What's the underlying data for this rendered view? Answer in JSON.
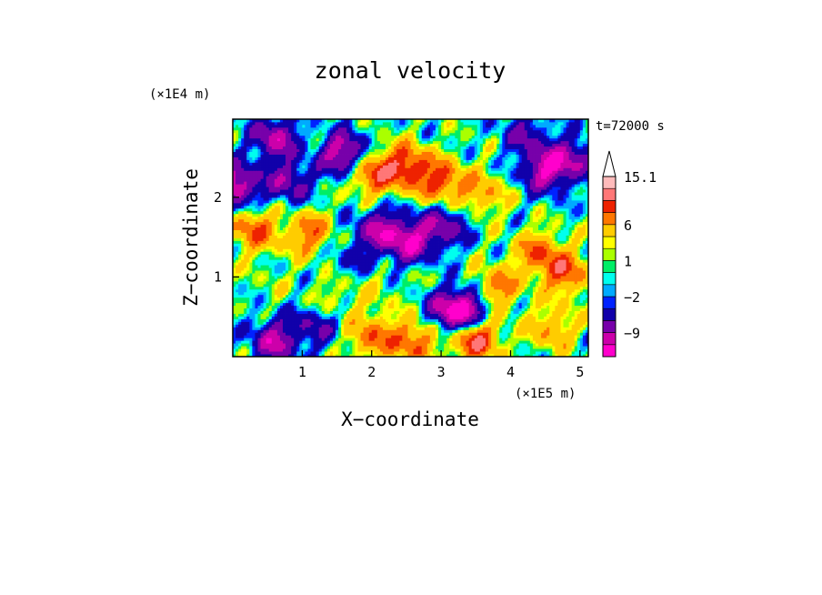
{
  "chart_data": {
    "type": "heatmap",
    "title": "zonal velocity",
    "xlabel": "X−coordinate",
    "ylabel": "Z−coordinate",
    "x_unit": "(×1E5 m)",
    "y_unit": "(×1E4 m)",
    "time_label": "t=72000 s",
    "xlim": [
      0,
      5.12
    ],
    "ylim": [
      0,
      2.98
    ],
    "x_ticks": [
      1,
      2,
      3,
      4,
      5
    ],
    "y_ticks": [
      1,
      2
    ],
    "colorbar": {
      "levels": [
        -15.1,
        -12,
        -9,
        -6,
        -3,
        -2,
        -1,
        0,
        1,
        2,
        3,
        6,
        9,
        12,
        15.1
      ],
      "tick_labels": [
        {
          "value": 15.1,
          "text": "15.1"
        },
        {
          "value": 6,
          "text": "6"
        },
        {
          "value": 1,
          "text": "1"
        },
        {
          "value": -2,
          "text": "−2"
        },
        {
          "value": -9,
          "text": "−9"
        }
      ],
      "colors": [
        "#ff00cc",
        "#cc00aa",
        "#7700aa",
        "#1100aa",
        "#0022ff",
        "#00aaff",
        "#00ffee",
        "#00ee66",
        "#aaff00",
        "#ffff00",
        "#ffcc00",
        "#ff7700",
        "#ee2200",
        "#ff7777",
        "#ffbbbb"
      ],
      "extend": "max"
    },
    "features": [
      {
        "x": 0.6,
        "z": 2.75,
        "u": -10
      },
      {
        "x": 0.8,
        "z": 2.2,
        "u": -8
      },
      {
        "x": 1.6,
        "z": 2.55,
        "u": -12
      },
      {
        "x": 1.1,
        "z": 1.55,
        "u": 8
      },
      {
        "x": 0.3,
        "z": 1.6,
        "u": 9
      },
      {
        "x": 2.0,
        "z": 2.3,
        "u": 10
      },
      {
        "x": 2.5,
        "z": 2.4,
        "u": 11
      },
      {
        "x": 3.0,
        "z": 2.2,
        "u": 10
      },
      {
        "x": 3.6,
        "z": 2.05,
        "u": 6
      },
      {
        "x": 2.1,
        "z": 1.6,
        "u": -9
      },
      {
        "x": 2.55,
        "z": 1.45,
        "u": -11
      },
      {
        "x": 3.05,
        "z": 1.65,
        "u": -8
      },
      {
        "x": 4.5,
        "z": 2.35,
        "u": -11
      },
      {
        "x": 4.9,
        "z": 2.5,
        "u": -8
      },
      {
        "x": 4.2,
        "z": 2.8,
        "u": -6
      },
      {
        "x": 4.4,
        "z": 1.3,
        "u": 8
      },
      {
        "x": 4.8,
        "z": 1.05,
        "u": 9
      },
      {
        "x": 3.8,
        "z": 0.85,
        "u": 8
      },
      {
        "x": 2.0,
        "z": 0.8,
        "u": 2
      },
      {
        "x": 1.4,
        "z": 0.7,
        "u": 3
      },
      {
        "x": 2.8,
        "z": 0.9,
        "u": 1
      },
      {
        "x": 3.4,
        "z": 0.55,
        "u": -12
      },
      {
        "x": 3.5,
        "z": 0.25,
        "u": 14
      },
      {
        "x": 3.1,
        "z": 0.6,
        "u": -9
      },
      {
        "x": 0.6,
        "z": 0.2,
        "u": -10
      },
      {
        "x": 1.2,
        "z": 0.4,
        "u": -6
      },
      {
        "x": 2.0,
        "z": 0.25,
        "u": 8
      },
      {
        "x": 2.6,
        "z": 0.2,
        "u": 9
      },
      {
        "x": 4.6,
        "z": 0.35,
        "u": 6
      },
      {
        "x": 0.05,
        "z": 2.15,
        "u": -12
      },
      {
        "x": 0.5,
        "z": 0.9,
        "u": 1
      },
      {
        "x": 1.7,
        "z": 1.25,
        "u": -3
      }
    ]
  }
}
